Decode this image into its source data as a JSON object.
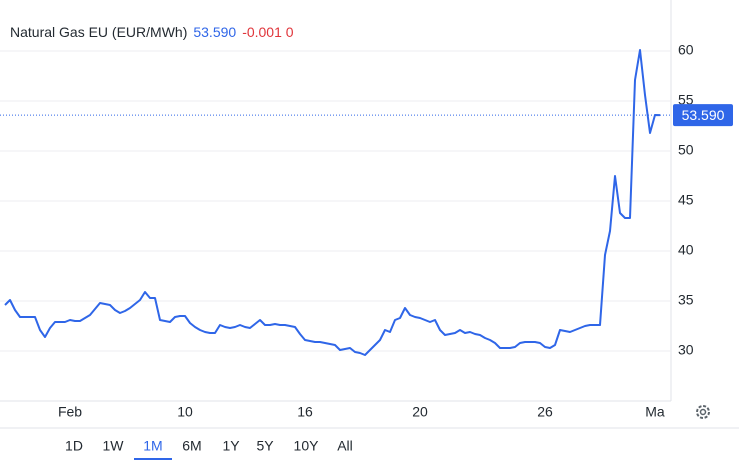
{
  "chart_data": {
    "type": "line",
    "title": "Natural Gas EU (EUR/MWh)",
    "last_price": "53.590",
    "change": "-0.001 0",
    "color": "#2f66e8",
    "categories": [
      null,
      null,
      null,
      null,
      null,
      null,
      null,
      null,
      null,
      null,
      null,
      null,
      null,
      "Feb",
      null,
      null,
      null,
      null,
      null,
      null,
      null,
      null,
      null,
      null,
      null,
      null,
      null,
      null,
      null,
      null,
      null,
      null,
      null,
      null,
      null,
      null,
      "10",
      null,
      null,
      null,
      null,
      null,
      null,
      null,
      null,
      null,
      null,
      null,
      null,
      null,
      null,
      null,
      null,
      null,
      null,
      null,
      null,
      null,
      null,
      null,
      "16",
      null,
      null,
      null,
      null,
      null,
      null,
      null,
      null,
      null,
      null,
      null,
      null,
      null,
      null,
      null,
      null,
      null,
      null,
      null,
      null,
      null,
      null,
      "20",
      null,
      null,
      null,
      null,
      null,
      null,
      null,
      null,
      null,
      null,
      null,
      null,
      null,
      null,
      null,
      null,
      null,
      null,
      null,
      null,
      null,
      null,
      null,
      null,
      "26",
      null,
      null,
      null,
      null,
      null,
      null,
      null,
      null,
      null,
      null,
      null,
      null,
      null,
      null,
      null,
      null,
      null,
      null,
      null,
      null,
      null,
      "Ma",
      null
    ],
    "values": [
      34.6,
      35.1,
      34.1,
      33.4,
      33.4,
      33.4,
      33.4,
      32.1,
      31.4,
      32.3,
      32.9,
      32.9,
      32.9,
      33.1,
      33.0,
      33.0,
      33.3,
      33.6,
      34.2,
      34.8,
      34.7,
      34.6,
      34.1,
      33.8,
      34.0,
      34.3,
      34.7,
      35.1,
      35.9,
      35.3,
      35.3,
      33.1,
      33.0,
      32.9,
      33.4,
      33.5,
      33.5,
      32.8,
      32.4,
      32.1,
      31.9,
      31.8,
      31.8,
      32.6,
      32.4,
      32.3,
      32.4,
      32.6,
      32.4,
      32.3,
      32.7,
      33.1,
      32.6,
      32.6,
      32.7,
      32.6,
      32.6,
      32.5,
      32.4,
      31.7,
      31.1,
      31.0,
      30.9,
      30.9,
      30.8,
      30.7,
      30.6,
      30.1,
      30.2,
      30.3,
      29.9,
      29.8,
      29.6,
      30.1,
      30.6,
      31.1,
      32.1,
      31.9,
      33.1,
      33.3,
      34.3,
      33.6,
      33.4,
      33.3,
      33.1,
      32.9,
      33.1,
      32.1,
      31.6,
      31.7,
      31.8,
      32.1,
      31.8,
      31.9,
      31.7,
      31.6,
      31.3,
      31.1,
      30.8,
      30.3,
      30.3,
      30.3,
      30.4,
      30.8,
      30.9,
      30.9,
      30.9,
      30.8,
      30.4,
      30.3,
      30.6,
      32.1,
      32.0,
      31.9,
      32.1,
      32.3,
      32.5,
      32.6,
      32.6,
      32.6,
      39.6,
      42.0,
      47.5,
      43.8,
      43.3,
      43.3,
      57.1,
      60.1,
      55.6,
      51.8,
      53.6,
      53.59
    ],
    "ylim": [
      25,
      64.5
    ],
    "yticks": [
      30,
      35,
      40,
      45,
      50,
      55,
      60
    ],
    "grid": true,
    "range_buttons": [
      "1D",
      "1W",
      "1M",
      "6M",
      "1Y",
      "5Y",
      "10Y",
      "All"
    ],
    "selected_range": "1M"
  }
}
